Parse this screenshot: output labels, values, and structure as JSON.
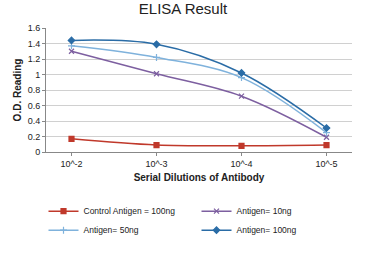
{
  "chart_data": {
    "type": "line",
    "title": "ELISA Result",
    "x_label": "Serial Dilutions of Antibody",
    "y_label": "O.D. Reading",
    "categories": [
      "10^-2",
      "10^-3",
      "10^-4",
      "10^-5"
    ],
    "series": [
      {
        "name": "Control Antigen = 100ng",
        "color": "#c0392b",
        "marker": "square",
        "line_style": "smooth",
        "values": [
          0.17,
          0.09,
          0.08,
          0.09
        ]
      },
      {
        "name": "Antigen= 10ng",
        "color": "#7d5fa0",
        "marker": "x",
        "line_style": "smooth",
        "values": [
          1.3,
          1.01,
          0.72,
          0.19
        ]
      },
      {
        "name": "Antigen= 50ng",
        "color": "#7fb2dc",
        "marker": "cross",
        "line_style": "smooth",
        "values": [
          1.37,
          1.22,
          0.96,
          0.25
        ]
      },
      {
        "name": "Antigen= 100ng",
        "color": "#2a6ca6",
        "marker": "diamond",
        "line_style": "smooth",
        "values": [
          1.44,
          1.39,
          1.02,
          0.31
        ]
      }
    ],
    "ylim": [
      0,
      1.6
    ],
    "yticks": [
      0,
      0.2,
      0.4,
      0.6,
      0.8,
      1,
      1.2,
      1.4,
      1.6
    ],
    "grid": true,
    "legend": "bottom"
  }
}
